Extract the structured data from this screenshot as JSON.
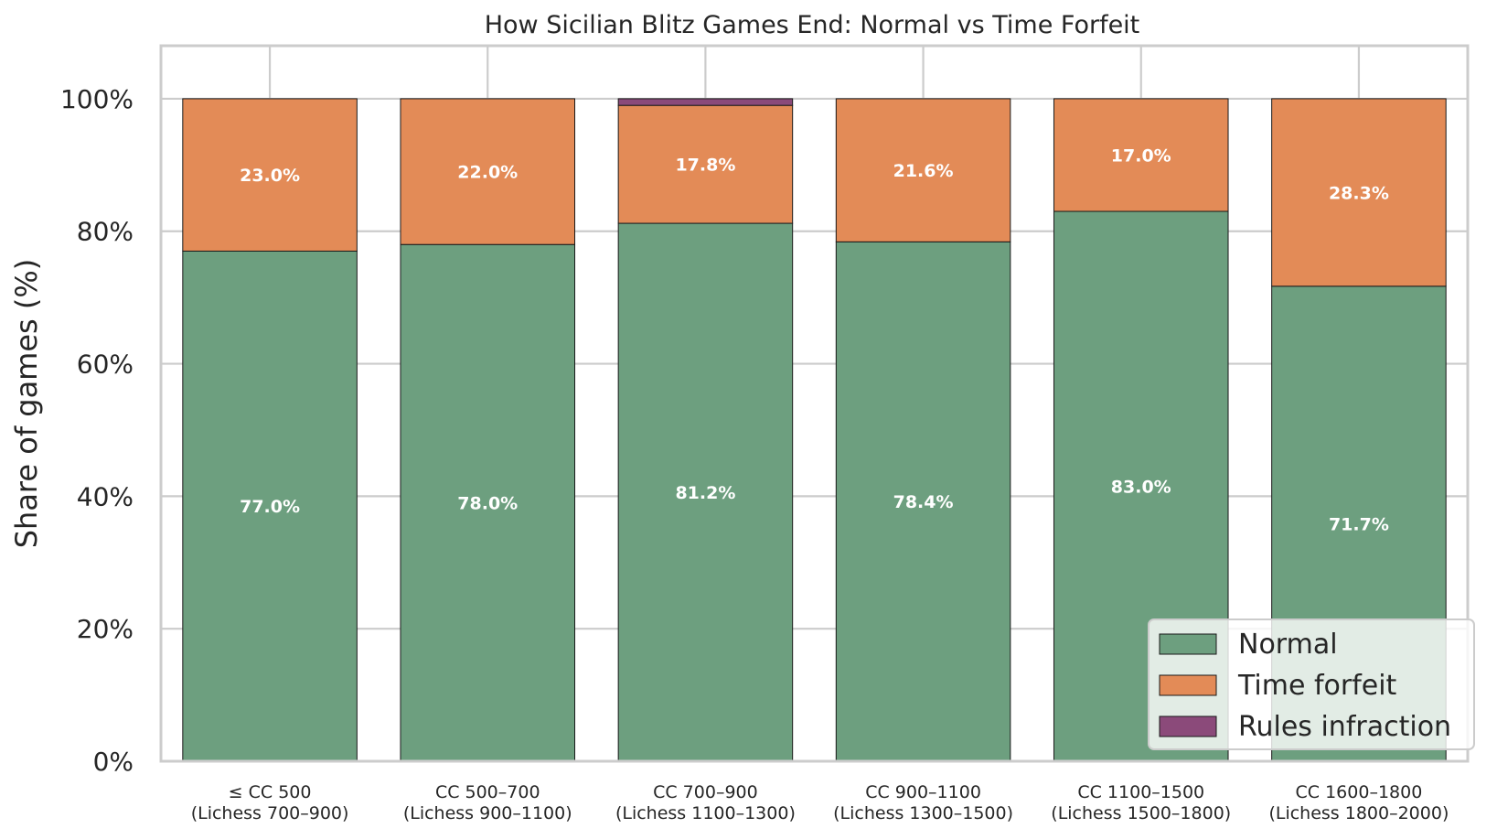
{
  "chart_data": {
    "type": "bar",
    "stacked": true,
    "title": "How Sicilian Blitz Games End: Normal vs Time Forfeit",
    "xlabel": "",
    "ylabel": "Share of games (%)",
    "ylim": [
      0,
      108
    ],
    "yticks": [
      0,
      20,
      40,
      60,
      80,
      100
    ],
    "ytick_labels": [
      "0%",
      "20%",
      "40%",
      "60%",
      "80%",
      "100%"
    ],
    "grid": true,
    "legend_position": "lower right",
    "categories": [
      [
        "≤ CC 500",
        "(Lichess 700–900)"
      ],
      [
        "CC 500–700",
        "(Lichess 900–1100)"
      ],
      [
        "CC 700–900",
        "(Lichess 1100–1300)"
      ],
      [
        "CC 900–1100",
        "(Lichess 1300–1500)"
      ],
      [
        "CC 1100–1500",
        "(Lichess 1500–1800)"
      ],
      [
        "CC 1600–1800",
        "(Lichess 1800–2000)"
      ]
    ],
    "series": [
      {
        "name": "Normal",
        "color": "#6d9f7f",
        "values": [
          77.0,
          78.0,
          81.2,
          78.4,
          83.0,
          71.7
        ],
        "labels": [
          "77.0%",
          "78.0%",
          "81.2%",
          "78.4%",
          "83.0%",
          "71.7%"
        ]
      },
      {
        "name": "Time forfeit",
        "color": "#e38b57",
        "values": [
          23.0,
          22.0,
          17.8,
          21.6,
          17.0,
          28.3
        ],
        "labels": [
          "23.0%",
          "22.0%",
          "17.8%",
          "21.6%",
          "17.0%",
          "28.3%"
        ]
      },
      {
        "name": "Rules infraction",
        "color": "#8b4a7a",
        "values": [
          0,
          0,
          1.0,
          0,
          0,
          0
        ],
        "labels": [
          "",
          "",
          "",
          "",
          "",
          ""
        ]
      }
    ]
  }
}
